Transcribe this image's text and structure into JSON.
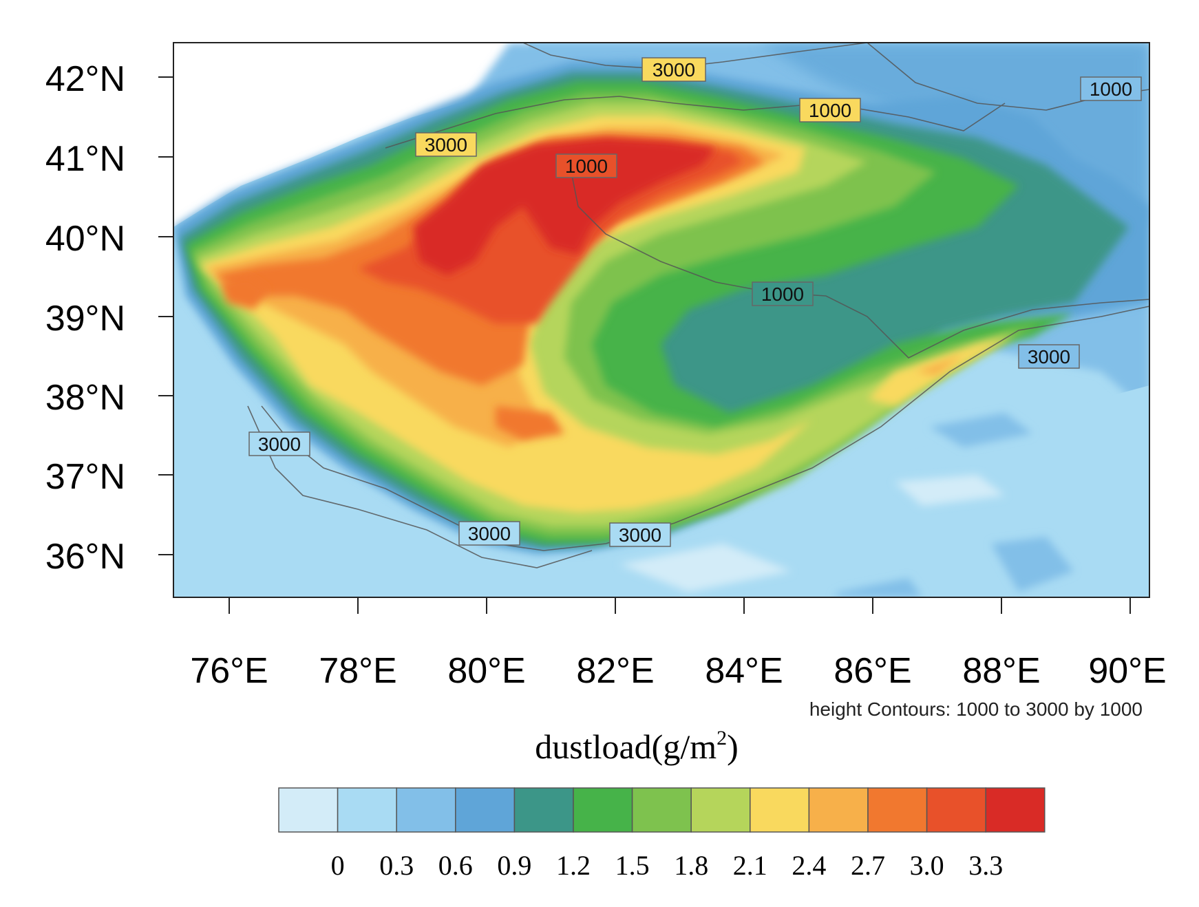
{
  "map": {
    "lat_labels": [
      "42°N",
      "41°N",
      "40°N",
      "39°N",
      "38°N",
      "37°N",
      "36°N"
    ],
    "lon_labels": [
      "76°E",
      "78°E",
      "80°E",
      "82°E",
      "84°E",
      "86°E",
      "88°E",
      "90°E"
    ],
    "contour_labels": [
      {
        "id": "top-3000",
        "text": "3000"
      },
      {
        "id": "northeast-1000",
        "text": "1000"
      },
      {
        "id": "east-1000",
        "text": "1000"
      },
      {
        "id": "northwest-3000",
        "text": "3000"
      },
      {
        "id": "central-1000",
        "text": "1000"
      },
      {
        "id": "mid-1000",
        "text": "1000"
      },
      {
        "id": "east-3000",
        "text": "3000"
      },
      {
        "id": "west-3000",
        "text": "3000"
      },
      {
        "id": "south-3000-a",
        "text": "3000"
      },
      {
        "id": "south-3000-b",
        "text": "3000"
      }
    ],
    "contour_note": "height Contours: 1000 to 3000 by 1000"
  },
  "colorbar": {
    "title_main": "dustload(g/m",
    "title_sup": "2",
    "title_end": ")",
    "colors": [
      "#d3ecf8",
      "#a9dbf3",
      "#82bfe8",
      "#5fa5d8",
      "#3c9688",
      "#46b349",
      "#7ec24e",
      "#b5d55b",
      "#f9d95e",
      "#f7b04a",
      "#f1782f",
      "#e8512a",
      "#d92b26"
    ],
    "labels": [
      "0",
      "0.3",
      "0.6",
      "0.9",
      "1.2",
      "1.5",
      "1.8",
      "2.1",
      "2.4",
      "2.7",
      "3.0",
      "3.3"
    ]
  }
}
